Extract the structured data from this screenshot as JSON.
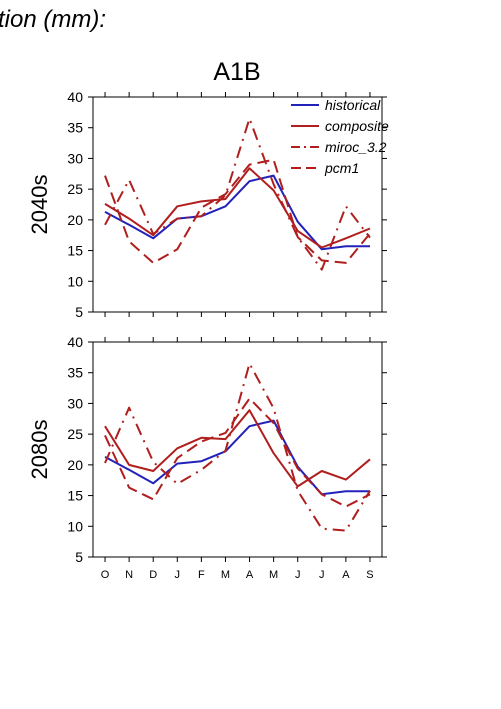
{
  "header": {
    "text": "tion (mm):"
  },
  "scenario_title": "A1B",
  "colors": {
    "historical": "#2222bb",
    "model": "#b01e1e",
    "axis": "#000000"
  },
  "chart_data": [
    {
      "type": "line",
      "panel_label": "2040s",
      "categories": [
        "O",
        "N",
        "D",
        "J",
        "F",
        "M",
        "A",
        "M",
        "J",
        "J",
        "A",
        "S"
      ],
      "ylim": [
        5,
        40
      ],
      "yticks": [
        5,
        10,
        15,
        20,
        25,
        30,
        35,
        40
      ],
      "grid": false,
      "legend": {
        "placement": "top-right"
      },
      "series": [
        {
          "name": "historical",
          "style": "solid",
          "color": "#2222bb",
          "values": [
            21.3,
            19.2,
            17.0,
            20.2,
            20.6,
            22.2,
            26.3,
            27.2,
            19.7,
            15.2,
            15.7,
            15.7
          ]
        },
        {
          "name": "composite",
          "style": "solid",
          "color": "#b01e1e",
          "values": [
            22.6,
            20.2,
            17.5,
            22.2,
            23.0,
            23.4,
            28.4,
            24.8,
            18.2,
            15.5,
            17.0,
            18.6
          ]
        },
        {
          "name": "miroc_3.2",
          "style": "dashdot",
          "color": "#b01e1e",
          "values": [
            19.2,
            26.5,
            17.7,
            20.2,
            20.6,
            24.0,
            36.5,
            25.8,
            17.2,
            11.9,
            22.2,
            17.1
          ]
        },
        {
          "name": "pcm1",
          "style": "dashed",
          "color": "#b01e1e",
          "values": [
            27.2,
            16.5,
            13.0,
            15.2,
            22.0,
            24.2,
            29.0,
            29.8,
            17.2,
            13.4,
            13.0,
            17.8
          ]
        }
      ]
    },
    {
      "type": "line",
      "panel_label": "2080s",
      "categories": [
        "O",
        "N",
        "D",
        "J",
        "F",
        "M",
        "A",
        "M",
        "J",
        "J",
        "A",
        "S"
      ],
      "ylim": [
        5,
        40
      ],
      "yticks": [
        5,
        10,
        15,
        20,
        25,
        30,
        35,
        40
      ],
      "grid": false,
      "series": [
        {
          "name": "historical",
          "style": "solid",
          "color": "#2222bb",
          "values": [
            21.3,
            19.2,
            17.0,
            20.2,
            20.6,
            22.2,
            26.3,
            27.2,
            19.7,
            15.2,
            15.7,
            15.7
          ]
        },
        {
          "name": "composite",
          "style": "solid",
          "color": "#b01e1e",
          "values": [
            26.3,
            20.0,
            19.0,
            22.7,
            24.4,
            24.2,
            28.9,
            21.9,
            16.5,
            19.0,
            17.6,
            20.9
          ]
        },
        {
          "name": "miroc_3.2",
          "style": "dashdot",
          "color": "#b01e1e",
          "values": [
            20.3,
            29.3,
            20.5,
            16.9,
            19.2,
            22.3,
            36.5,
            29.2,
            15.8,
            9.6,
            9.3,
            15.8
          ]
        },
        {
          "name": "pcm1",
          "style": "dashed",
          "color": "#b01e1e",
          "values": [
            24.8,
            16.3,
            14.4,
            21.1,
            23.8,
            25.2,
            30.8,
            26.8,
            19.4,
            15.2,
            13.2,
            15.2
          ]
        }
      ]
    }
  ]
}
